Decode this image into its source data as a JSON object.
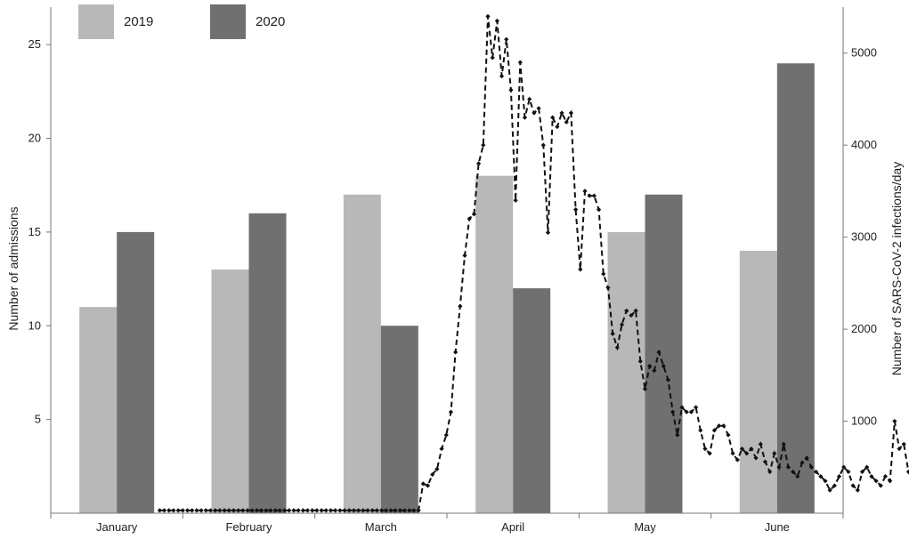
{
  "chart_data": {
    "type": "bar",
    "categories": [
      "January",
      "February",
      "March",
      "April",
      "May",
      "June"
    ],
    "series": [
      {
        "name": "2019",
        "color": "#b8b8b8",
        "values": [
          11,
          13,
          17,
          18,
          15,
          14
        ]
      },
      {
        "name": "2020",
        "color": "#707070",
        "values": [
          15,
          16,
          10,
          12,
          17,
          24
        ]
      }
    ],
    "ylabel": "Number of admissions",
    "ylim": [
      0,
      27
    ],
    "yticks": [
      5,
      10,
      15,
      20,
      25
    ],
    "y2label": "Number of SARS-CoV-2 infections/day",
    "y2lim": [
      0,
      5500
    ],
    "y2ticks": [
      1000,
      2000,
      3000,
      4000,
      5000
    ],
    "line": {
      "type": "line",
      "style": "dashed",
      "marker": "diamond",
      "color": "#111111",
      "axis": "secondary",
      "points": [
        [
          0.0,
          30
        ],
        [
          0.07,
          30
        ],
        [
          0.14,
          30
        ],
        [
          0.21,
          30
        ],
        [
          0.28,
          30
        ],
        [
          0.35,
          30
        ],
        [
          0.42,
          30
        ],
        [
          0.49,
          30
        ],
        [
          0.56,
          30
        ],
        [
          0.63,
          30
        ],
        [
          0.7,
          30
        ],
        [
          0.77,
          30
        ],
        [
          0.84,
          30
        ],
        [
          0.91,
          30
        ],
        [
          0.98,
          30
        ],
        [
          1.05,
          30
        ],
        [
          1.12,
          30
        ],
        [
          1.19,
          30
        ],
        [
          1.26,
          30
        ],
        [
          1.33,
          30
        ],
        [
          1.4,
          30
        ],
        [
          1.47,
          30
        ],
        [
          1.54,
          30
        ],
        [
          1.61,
          30
        ],
        [
          1.68,
          30
        ],
        [
          1.75,
          30
        ],
        [
          1.82,
          30
        ],
        [
          1.89,
          30
        ],
        [
          1.96,
          30
        ],
        [
          2.03,
          30
        ],
        [
          2.1,
          30
        ],
        [
          2.17,
          30
        ],
        [
          2.24,
          30
        ],
        [
          2.31,
          30
        ],
        [
          2.38,
          30
        ],
        [
          2.45,
          30
        ],
        [
          2.52,
          30
        ],
        [
          2.59,
          30
        ],
        [
          2.66,
          30
        ],
        [
          2.73,
          30
        ],
        [
          2.8,
          30
        ],
        [
          2.87,
          30
        ],
        [
          2.94,
          30
        ],
        [
          3.01,
          30
        ],
        [
          3.08,
          30
        ],
        [
          3.15,
          30
        ],
        [
          3.22,
          30
        ],
        [
          3.29,
          30
        ],
        [
          3.36,
          30
        ],
        [
          3.43,
          30
        ],
        [
          3.5,
          30
        ],
        [
          3.57,
          30
        ],
        [
          3.64,
          30
        ],
        [
          3.71,
          30
        ],
        [
          3.78,
          30
        ],
        [
          3.85,
          30
        ],
        [
          3.92,
          30
        ],
        [
          3.99,
          320
        ],
        [
          4.06,
          300
        ],
        [
          4.13,
          420
        ],
        [
          4.2,
          480
        ],
        [
          4.27,
          700
        ],
        [
          4.34,
          850
        ],
        [
          4.41,
          1100
        ],
        [
          4.48,
          1750
        ],
        [
          4.55,
          2250
        ],
        [
          4.62,
          2800
        ],
        [
          4.69,
          3200
        ],
        [
          4.76,
          3250
        ],
        [
          4.83,
          3800
        ],
        [
          4.9,
          4000
        ],
        [
          4.97,
          5400
        ],
        [
          5.04,
          4950
        ],
        [
          5.11,
          5350
        ],
        [
          5.18,
          4750
        ],
        [
          5.25,
          5150
        ],
        [
          5.32,
          4600
        ],
        [
          5.39,
          3400
        ],
        [
          5.46,
          4900
        ],
        [
          5.53,
          4300
        ],
        [
          5.6,
          4500
        ],
        [
          5.67,
          4350
        ],
        [
          5.74,
          4400
        ],
        [
          5.81,
          4000
        ],
        [
          5.88,
          3050
        ],
        [
          5.95,
          4300
        ],
        [
          6.02,
          4200
        ],
        [
          6.09,
          4350
        ],
        [
          6.16,
          4250
        ],
        [
          6.23,
          4350
        ],
        [
          6.3,
          3300
        ],
        [
          6.37,
          2650
        ],
        [
          6.44,
          3500
        ],
        [
          6.51,
          3450
        ],
        [
          6.58,
          3450
        ],
        [
          6.65,
          3300
        ],
        [
          6.72,
          2600
        ],
        [
          6.79,
          2450
        ],
        [
          6.86,
          1950
        ],
        [
          6.93,
          1800
        ],
        [
          7.0,
          2050
        ],
        [
          7.07,
          2200
        ],
        [
          7.14,
          2150
        ],
        [
          7.21,
          2200
        ],
        [
          7.28,
          1650
        ],
        [
          7.35,
          1350
        ],
        [
          7.42,
          1600
        ],
        [
          7.49,
          1550
        ],
        [
          7.56,
          1750
        ],
        [
          7.63,
          1600
        ],
        [
          7.7,
          1450
        ],
        [
          7.77,
          1100
        ],
        [
          7.84,
          850
        ],
        [
          7.91,
          1150
        ],
        [
          7.98,
          1100
        ],
        [
          8.05,
          1100
        ],
        [
          8.12,
          1150
        ],
        [
          8.19,
          900
        ],
        [
          8.26,
          700
        ],
        [
          8.33,
          650
        ],
        [
          8.4,
          900
        ],
        [
          8.47,
          950
        ],
        [
          8.54,
          950
        ],
        [
          8.61,
          850
        ],
        [
          8.68,
          650
        ],
        [
          8.75,
          580
        ],
        [
          8.82,
          700
        ],
        [
          8.89,
          650
        ],
        [
          8.96,
          700
        ],
        [
          9.03,
          600
        ],
        [
          9.1,
          750
        ],
        [
          9.17,
          560
        ],
        [
          9.24,
          450
        ],
        [
          9.31,
          650
        ],
        [
          9.38,
          500
        ],
        [
          9.45,
          750
        ],
        [
          9.52,
          500
        ],
        [
          9.59,
          450
        ],
        [
          9.66,
          400
        ],
        [
          9.73,
          550
        ],
        [
          9.8,
          600
        ],
        [
          9.87,
          500
        ],
        [
          9.94,
          450
        ],
        [
          10.01,
          400
        ],
        [
          10.08,
          350
        ],
        [
          10.15,
          250
        ],
        [
          10.22,
          300
        ],
        [
          10.29,
          400
        ],
        [
          10.36,
          500
        ],
        [
          10.43,
          450
        ],
        [
          10.5,
          300
        ],
        [
          10.57,
          250
        ],
        [
          10.64,
          450
        ],
        [
          10.71,
          500
        ],
        [
          10.78,
          400
        ],
        [
          10.85,
          350
        ],
        [
          10.92,
          300
        ],
        [
          10.99,
          400
        ],
        [
          11.06,
          350
        ],
        [
          11.13,
          1000
        ],
        [
          11.2,
          700
        ],
        [
          11.27,
          750
        ],
        [
          11.34,
          450
        ],
        [
          11.41,
          350
        ],
        [
          11.48,
          550
        ],
        [
          11.55,
          500
        ],
        [
          11.62,
          500
        ],
        [
          11.69,
          450
        ],
        [
          11.76,
          500
        ],
        [
          11.83,
          300
        ],
        [
          11.9,
          250
        ],
        [
          11.97,
          400
        ],
        [
          12.04,
          450
        ],
        [
          12.11,
          450
        ]
      ]
    }
  }
}
